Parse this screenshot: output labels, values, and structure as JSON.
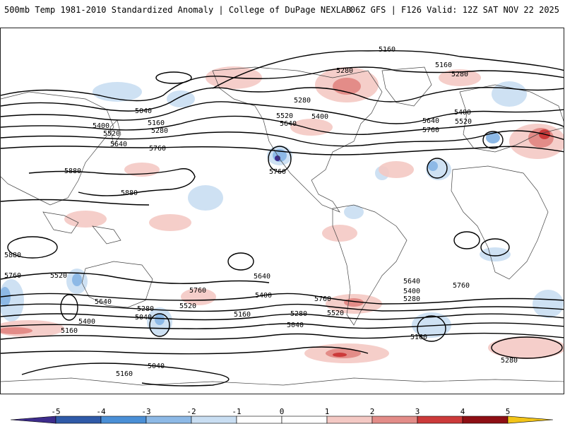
{
  "header": {
    "title_left": "500mb Temp 1981-2010 Standardized Anomaly | College of DuPage NEXLAB",
    "title_right": "06Z GFS | F126 Valid: 12Z SAT NOV 22 2025"
  },
  "contour_labels": [
    {
      "text": "5160"
    },
    {
      "text": "5160"
    },
    {
      "text": "5280"
    },
    {
      "text": "5280"
    },
    {
      "text": "5280"
    },
    {
      "text": "5040"
    },
    {
      "text": "5160"
    },
    {
      "text": "5280"
    },
    {
      "text": "5400"
    },
    {
      "text": "5520"
    },
    {
      "text": "5640"
    },
    {
      "text": "5760"
    },
    {
      "text": "5520"
    },
    {
      "text": "5640"
    },
    {
      "text": "5400"
    },
    {
      "text": "5760"
    },
    {
      "text": "5400"
    },
    {
      "text": "5520"
    },
    {
      "text": "5640"
    },
    {
      "text": "5760"
    },
    {
      "text": "5880"
    },
    {
      "text": "5880"
    },
    {
      "text": "5880"
    },
    {
      "text": "5760"
    },
    {
      "text": "5520"
    },
    {
      "text": "5640"
    },
    {
      "text": "5760"
    },
    {
      "text": "5400"
    },
    {
      "text": "5280"
    },
    {
      "text": "5040"
    },
    {
      "text": "5160"
    },
    {
      "text": "5520"
    },
    {
      "text": "5400"
    },
    {
      "text": "5640"
    },
    {
      "text": "5160"
    },
    {
      "text": "5280"
    },
    {
      "text": "5040"
    },
    {
      "text": "5160"
    },
    {
      "text": "5040"
    },
    {
      "text": "5760"
    },
    {
      "text": "5520"
    },
    {
      "text": "5640"
    },
    {
      "text": "5400"
    },
    {
      "text": "5280"
    },
    {
      "text": "5760"
    },
    {
      "text": "5160"
    },
    {
      "text": "5280"
    }
  ],
  "colorbar": {
    "ticks": [
      "-5",
      "-4",
      "-3",
      "-2",
      "-1",
      "0",
      "1",
      "2",
      "3",
      "4",
      "5"
    ],
    "colors": [
      "#3d2c8c",
      "#2f5aa8",
      "#4a8fd6",
      "#8db9e6",
      "#c9def2",
      "#ffffff",
      "#ffffff",
      "#f4c9c4",
      "#e38c88",
      "#cc3a3a",
      "#8e0f14",
      "#f2c418"
    ],
    "range": [
      -5,
      5
    ]
  }
}
